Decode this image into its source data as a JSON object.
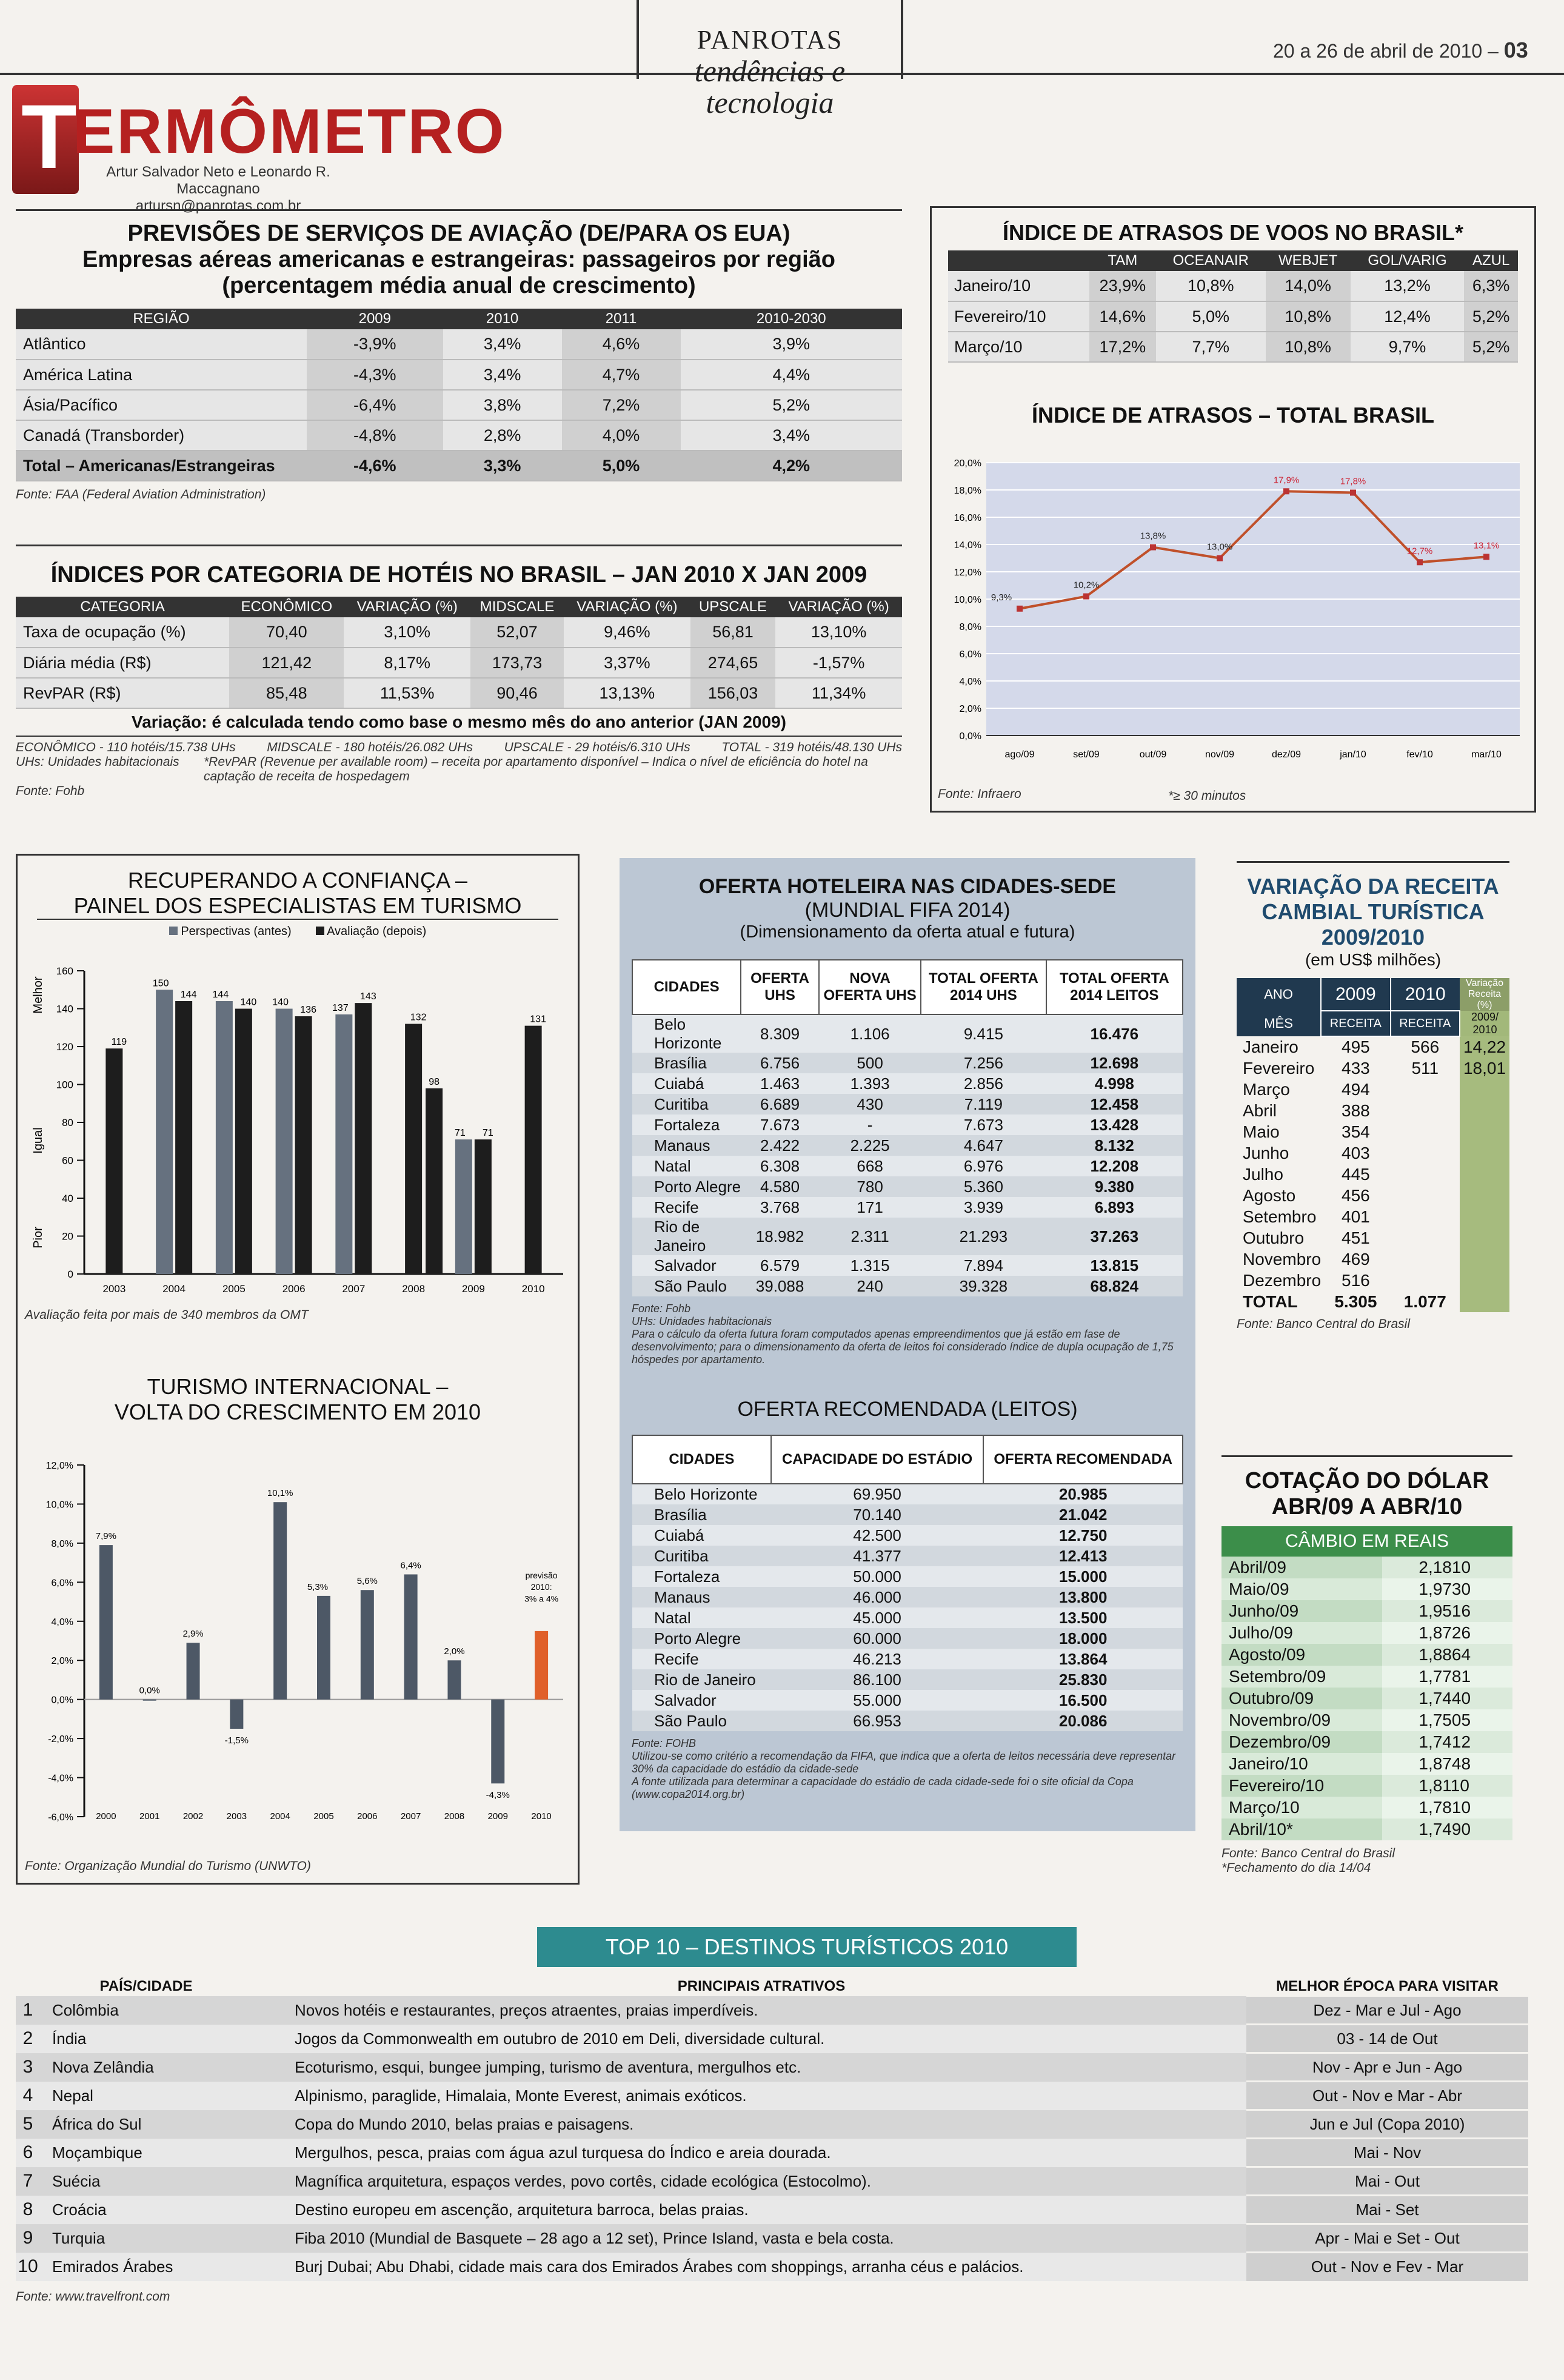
{
  "header": {
    "brand": "PANROTAS",
    "subtitle": "tendências e tecnologia",
    "date": "20 a 26 de abril de 2010",
    "page": "03"
  },
  "section": {
    "title_first": "T",
    "title_rest": "ERMÔMETRO",
    "authors": "Artur Salvador Neto e Leonardo R. Maccagnano",
    "email": "artursn@panrotas.com.br"
  },
  "aviation": {
    "title1": "PREVISÕES DE SERVIÇOS DE AVIAÇÃO (DE/PARA OS EUA)",
    "title2": "Empresas aéreas americanas e estrangeiras: passageiros por região",
    "title3": "(percentagem média anual de crescimento)",
    "headers": [
      "REGIÃO",
      "2009",
      "2010",
      "2011",
      "2010-2030"
    ],
    "rows": [
      [
        "Atlântico",
        "-3,9%",
        "3,4%",
        "4,6%",
        "3,9%"
      ],
      [
        "América Latina",
        "-4,3%",
        "3,4%",
        "4,7%",
        "4,4%"
      ],
      [
        "Ásia/Pacífico",
        "-6,4%",
        "3,8%",
        "7,2%",
        "5,2%"
      ],
      [
        "Canadá (Transborder)",
        "-4,8%",
        "2,8%",
        "4,0%",
        "3,4%"
      ],
      [
        "Total – Americanas/Estrangeiras",
        "-4,6%",
        "3,3%",
        "5,0%",
        "4,2%"
      ]
    ],
    "source": "Fonte: FAA (Federal Aviation Administration)"
  },
  "hotels": {
    "title": "ÍNDICES POR CATEGORIA DE HOTÉIS NO BRASIL – JAN 2010 X JAN 2009",
    "headers": [
      "CATEGORIA",
      "ECONÔMICO",
      "VARIAÇÃO (%)",
      "MIDSCALE",
      "VARIAÇÃO (%)",
      "UPSCALE",
      "VARIAÇÃO (%)"
    ],
    "rows": [
      [
        "Taxa de ocupação (%)",
        "70,40",
        "3,10%",
        "52,07",
        "9,46%",
        "56,81",
        "13,10%"
      ],
      [
        "Diária média (R$)",
        "121,42",
        "8,17%",
        "173,73",
        "3,37%",
        "274,65",
        "-1,57%"
      ],
      [
        "RevPAR (R$)",
        "85,48",
        "11,53%",
        "90,46",
        "13,13%",
        "156,03",
        "11,34%"
      ]
    ],
    "note": "Variação: é calculada tendo como base o mesmo mês do ano anterior (JAN 2009)",
    "f1": "ECONÔMICO - 110 hotéis/15.738 UHs",
    "f2": "MIDSCALE - 180 hotéis/26.082 UHs",
    "f3": "UPSCALE - 29 hotéis/6.310 UHs",
    "f4": "TOTAL - 319 hotéis/48.130 UHs",
    "f5": "UHs: Unidades habitacionais",
    "f6": "*RevPAR (Revenue per available room) – receita por apartamento disponível – Indica o nível de eficiência do hotel na captação de receita de hospedagem",
    "f7": "Fonte: Fohb"
  },
  "delays": {
    "title": "ÍNDICE DE ATRASOS DE VOOS NO BRASIL*",
    "headers": [
      "",
      "TAM",
      "OCEANAIR",
      "WEBJET",
      "GOL/VARIG",
      "AZUL"
    ],
    "rows": [
      [
        "Janeiro/10",
        "23,9%",
        "10,8%",
        "14,0%",
        "13,2%",
        "6,3%"
      ],
      [
        "Fevereiro/10",
        "14,6%",
        "5,0%",
        "10,8%",
        "12,4%",
        "5,2%"
      ],
      [
        "Março/10",
        "17,2%",
        "7,7%",
        "10,8%",
        "9,7%",
        "5,2%"
      ]
    ],
    "chart_title": "ÍNDICE DE ATRASOS – TOTAL BRASIL",
    "source": "Fonte: Infraero",
    "footnote": "*≥ 30 minutos"
  },
  "panel": {
    "title1": "RECUPERANDO A CONFIANÇA –",
    "title2": "PAINEL DOS ESPECIALISTAS EM TURISMO",
    "legend_before": "Perspectivas (antes)",
    "legend_after": "Avaliação (depois)",
    "ylab_top": "Melhor",
    "ylab_mid": "Igual",
    "ylab_bot": "Pior",
    "note": "Avaliação feita por mais de 340 membros da OMT"
  },
  "tourism": {
    "title1": "TURISMO INTERNACIONAL –",
    "title2": "VOLTA DO CRESCIMENTO EM 2010",
    "forecast1": "previsão",
    "forecast2": "2010:",
    "forecast3": "3% a 4%",
    "source": "Fonte: Organização Mundial do Turismo (UNWTO)"
  },
  "supply": {
    "title1": "OFERTA HOTELEIRA NAS CIDADES-SEDE",
    "title2": "(MUNDIAL FIFA 2014)",
    "title3": "(Dimensionamento da oferta atual e futura)",
    "headers": [
      "CIDADES",
      "OFERTA UHS",
      "NOVA OFERTA UHS",
      "TOTAL OFERTA 2014 UHS",
      "TOTAL OFERTA 2014 LEITOS"
    ],
    "rows": [
      [
        "Belo Horizonte",
        "8.309",
        "1.106",
        "9.415",
        "16.476"
      ],
      [
        "Brasília",
        "6.756",
        "500",
        "7.256",
        "12.698"
      ],
      [
        "Cuiabá",
        "1.463",
        "1.393",
        "2.856",
        "4.998"
      ],
      [
        "Curitiba",
        "6.689",
        "430",
        "7.119",
        "12.458"
      ],
      [
        "Fortaleza",
        "7.673",
        "-",
        "7.673",
        "13.428"
      ],
      [
        "Manaus",
        "2.422",
        "2.225",
        "4.647",
        "8.132"
      ],
      [
        "Natal",
        "6.308",
        "668",
        "6.976",
        "12.208"
      ],
      [
        "Porto Alegre",
        "4.580",
        "780",
        "5.360",
        "9.380"
      ],
      [
        "Recife",
        "3.768",
        "171",
        "3.939",
        "6.893"
      ],
      [
        "Rio de Janeiro",
        "18.982",
        "2.311",
        "21.293",
        "37.263"
      ],
      [
        "Salvador",
        "6.579",
        "1.315",
        "7.894",
        "13.815"
      ],
      [
        "São Paulo",
        "39.088",
        "240",
        "39.328",
        "68.824"
      ]
    ],
    "f1": "Fonte: Fohb",
    "f2": "UHs: Unidades habitacionais",
    "f3": "Para o cálculo da oferta futura foram computados apenas empreendimentos que já estão em fase de desenvolvimento; para o dimensionamento da oferta de leitos foi considerado índice de dupla ocupação de 1,75 hóspedes por apartamento."
  },
  "recommended": {
    "title": "OFERTA RECOMENDADA (LEITOS)",
    "headers": [
      "CIDADES",
      "CAPACIDADE DO ESTÁDIO",
      "OFERTA RECOMENDADA"
    ],
    "rows": [
      [
        "Belo Horizonte",
        "69.950",
        "20.985"
      ],
      [
        "Brasília",
        "70.140",
        "21.042"
      ],
      [
        "Cuiabá",
        "42.500",
        "12.750"
      ],
      [
        "Curitiba",
        "41.377",
        "12.413"
      ],
      [
        "Fortaleza",
        "50.000",
        "15.000"
      ],
      [
        "Manaus",
        "46.000",
        "13.800"
      ],
      [
        "Natal",
        "45.000",
        "13.500"
      ],
      [
        "Porto Alegre",
        "60.000",
        "18.000"
      ],
      [
        "Recife",
        "46.213",
        "13.864"
      ],
      [
        "Rio de Janeiro",
        "86.100",
        "25.830"
      ],
      [
        "Salvador",
        "55.000",
        "16.500"
      ],
      [
        "São Paulo",
        "66.953",
        "20.086"
      ]
    ],
    "f1": "Fonte: FOHB",
    "f2": "Utilizou-se como critério a recomendação da FIFA, que indica que a oferta de leitos necessária deve representar 30% da capacidade do estádio da cidade-sede",
    "f3": "A fonte utilizada para determinar a capacidade do estádio de cada cidade-sede foi o site oficial da Copa (www.copa2014.org.br)"
  },
  "revenue": {
    "title1": "VARIAÇÃO DA RECEITA",
    "title2": "CAMBIAL TURÍSTICA",
    "title3": "2009/2010",
    "unit": "(em US$ milhões)",
    "h_ano": "ANO",
    "h_2009": "2009",
    "h_2010": "2010",
    "h_var": "Variação Receita (%)",
    "h_mes": "MÊS",
    "h_rec1": "RECEITA",
    "h_rec2": "RECEITA",
    "h_var2": "2009/ 2010",
    "rows": [
      [
        "Janeiro",
        "495",
        "566",
        "14,22"
      ],
      [
        "Fevereiro",
        "433",
        "511",
        "18,01"
      ],
      [
        "Março",
        "494",
        "",
        ""
      ],
      [
        "Abril",
        "388",
        "",
        ""
      ],
      [
        "Maio",
        "354",
        "",
        ""
      ],
      [
        "Junho",
        "403",
        "",
        ""
      ],
      [
        "Julho",
        "445",
        "",
        ""
      ],
      [
        "Agosto",
        "456",
        "",
        ""
      ],
      [
        "Setembro",
        "401",
        "",
        ""
      ],
      [
        "Outubro",
        "451",
        "",
        ""
      ],
      [
        "Novembro",
        "469",
        "",
        ""
      ],
      [
        "Dezembro",
        "516",
        "",
        ""
      ],
      [
        "TOTAL",
        "5.305",
        "1.077",
        ""
      ]
    ],
    "source": "Fonte: Banco Central do Brasil"
  },
  "dollar": {
    "title1": "COTAÇÃO DO DÓLAR",
    "title2": "ABR/09 A ABR/10",
    "band": "CÂMBIO EM REAIS",
    "rows": [
      [
        "Abril/09",
        "2,1810"
      ],
      [
        "Maio/09",
        "1,9730"
      ],
      [
        "Junho/09",
        "1,9516"
      ],
      [
        "Julho/09",
        "1,8726"
      ],
      [
        "Agosto/09",
        "1,8864"
      ],
      [
        "Setembro/09",
        "1,7781"
      ],
      [
        "Outubro/09",
        "1,7440"
      ],
      [
        "Novembro/09",
        "1,7505"
      ],
      [
        "Dezembro/09",
        "1,7412"
      ],
      [
        "Janeiro/10",
        "1,8748"
      ],
      [
        "Fevereiro/10",
        "1,8110"
      ],
      [
        "Março/10",
        "1,7810"
      ],
      [
        "Abril/10*",
        "1,7490"
      ]
    ],
    "f1": "Fonte: Banco Central do Brasil",
    "f2": "*Fechamento do dia 14/04"
  },
  "top10": {
    "title": "TOP 10 – DESTINOS TURÍSTICOS 2010",
    "h_city": "PAÍS/CIDADE",
    "h_attr": "PRINCIPAIS ATRATIVOS",
    "h_time": "MELHOR ÉPOCA PARA VISITAR",
    "rows": [
      [
        "1",
        "Colômbia",
        "Novos hotéis e restaurantes, preços atraentes, praias imperdíveis.",
        "Dez - Mar e Jul - Ago"
      ],
      [
        "2",
        "Índia",
        "Jogos da Commonwealth em outubro de 2010 em Deli, diversidade cultural.",
        "03 - 14 de Out"
      ],
      [
        "3",
        "Nova Zelândia",
        "Ecoturismo, esqui, bungee jumping, turismo de aventura, mergulhos etc.",
        "Nov - Apr e Jun - Ago"
      ],
      [
        "4",
        "Nepal",
        "Alpinismo, paraglide, Himalaia, Monte Everest, animais exóticos.",
        "Out - Nov e Mar - Abr"
      ],
      [
        "5",
        "África do Sul",
        "Copa do Mundo 2010, belas praias e paisagens.",
        "Jun e Jul (Copa 2010)"
      ],
      [
        "6",
        "Moçambique",
        "Mergulhos, pesca, praias com água azul turquesa do Índico e areia dourada.",
        "Mai - Nov"
      ],
      [
        "7",
        "Suécia",
        "Magnífica arquitetura, espaços verdes, povo cortês, cidade ecológica (Estocolmo).",
        "Mai - Out"
      ],
      [
        "8",
        "Croácia",
        "Destino europeu em ascenção, arquitetura barroca, belas praias.",
        "Mai - Set"
      ],
      [
        "9",
        "Turquia",
        "Fiba 2010 (Mundial de Basquete – 28 ago a 12 set), Prince Island, vasta e bela costa.",
        "Apr - Mai e Set - Out"
      ],
      [
        "10",
        "Emirados Árabes",
        "Burj Dubai; Abu Dhabi, cidade mais cara dos Emirados Árabes com shoppings, arranha céus e palácios.",
        "Out - Nov e Fev - Mar"
      ]
    ],
    "source": "Fonte: www.travelfront.com"
  },
  "chart_data": [
    {
      "type": "line",
      "title": "ÍNDICE DE ATRASOS – TOTAL BRASIL",
      "categories": [
        "ago/09",
        "set/09",
        "out/09",
        "nov/09",
        "dez/09",
        "jan/10",
        "fev/10",
        "mar/10"
      ],
      "values": [
        9.3,
        10.2,
        13.8,
        13.0,
        17.9,
        17.8,
        12.7,
        13.1
      ],
      "labels": [
        "9,3%",
        "10,2%",
        "13,8%",
        "13,0%",
        "17,9%",
        "17,8%",
        "12,7%",
        "13,1%"
      ],
      "ylim": [
        0,
        20
      ],
      "yticks": [
        "0,0%",
        "2,0%",
        "4,0%",
        "6,0%",
        "8,0%",
        "10,0%",
        "12,0%",
        "14,0%",
        "16,0%",
        "18,0%",
        "20,0%"
      ]
    },
    {
      "type": "bar",
      "title": "RECUPERANDO A CONFIANÇA – PAINEL DOS ESPECIALISTAS EM TURISMO",
      "categories": [
        "2003",
        "2004",
        "2005",
        "2006",
        "2007",
        "2008",
        "2009",
        "2010"
      ],
      "series": [
        {
          "name": "Perspectivas (antes)",
          "values": [
            null,
            150,
            144,
            140,
            137,
            null,
            71,
            null
          ]
        },
        {
          "name": "Avaliação (depois)",
          "values": [
            119,
            144,
            140,
            136,
            143,
            132,
            71,
            131
          ]
        }
      ],
      "extra": {
        "2008": 98
      },
      "ylim": [
        0,
        160
      ],
      "yticks": [
        "0",
        "20",
        "40",
        "60",
        "80",
        "100",
        "120",
        "140",
        "160"
      ]
    },
    {
      "type": "bar",
      "title": "TURISMO INTERNACIONAL – VOLTA DO CRESCIMENTO EM 2010",
      "categories": [
        "2000",
        "2001",
        "2002",
        "2003",
        "2004",
        "2005",
        "2006",
        "2007",
        "2008",
        "2009",
        "2010"
      ],
      "values": [
        7.9,
        0.0,
        2.9,
        -1.5,
        10.1,
        5.3,
        5.6,
        6.4,
        2.0,
        -4.3,
        3.5
      ],
      "labels": [
        "7,9%",
        "0,0%",
        "2,9%",
        "-1,5%",
        "10,1%",
        "5,3%",
        "5,6%",
        "6,4%",
        "2,0%",
        "-4,3%",
        ""
      ],
      "ylim": [
        -6,
        12
      ],
      "yticks": [
        "-6,0%",
        "-4,0%",
        "-2,0%",
        "0,0%",
        "2,0%",
        "4,0%",
        "6,0%",
        "8,0%",
        "10,0%",
        "12,0%"
      ]
    }
  ]
}
